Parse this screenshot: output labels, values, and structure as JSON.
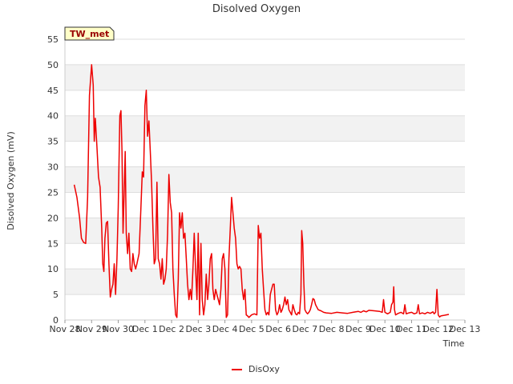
{
  "chart_data": {
    "type": "line",
    "title": "Disolved Oxygen",
    "xlabel": "Time",
    "ylabel": "Disolved Oxygen (mV)",
    "station_label": "TW_met",
    "ylim": [
      0,
      55
    ],
    "xlim": [
      0,
      15
    ],
    "yticks": [
      0,
      5,
      10,
      15,
      20,
      25,
      30,
      35,
      40,
      45,
      50,
      55
    ],
    "xticks": [
      {
        "pos": 0,
        "label": "Nov 28"
      },
      {
        "pos": 1,
        "label": "Nov 29"
      },
      {
        "pos": 2,
        "label": "Nov 30"
      },
      {
        "pos": 3,
        "label": "Dec 1"
      },
      {
        "pos": 4,
        "label": "Dec 2"
      },
      {
        "pos": 5,
        "label": "Dec 3"
      },
      {
        "pos": 6,
        "label": "Dec 4"
      },
      {
        "pos": 7,
        "label": "Dec 5"
      },
      {
        "pos": 8,
        "label": "Dec 6"
      },
      {
        "pos": 9,
        "label": "Dec 7"
      },
      {
        "pos": 10,
        "label": "Dec 8"
      },
      {
        "pos": 11,
        "label": "Dec 9"
      },
      {
        "pos": 12,
        "label": "Dec 10"
      },
      {
        "pos": 13,
        "label": "Dec 11"
      },
      {
        "pos": 14,
        "label": "Dec 12"
      },
      {
        "pos": 15,
        "label": "Dec 13"
      }
    ],
    "grid": true,
    "legend_position": "bottom-center",
    "series": [
      {
        "name": "DisOxy",
        "color": "#ee0000",
        "points": [
          [
            0.35,
            26.5
          ],
          [
            0.45,
            24
          ],
          [
            0.55,
            20
          ],
          [
            0.62,
            16
          ],
          [
            0.7,
            15.2
          ],
          [
            0.78,
            15
          ],
          [
            0.85,
            24
          ],
          [
            0.92,
            44
          ],
          [
            1.0,
            50
          ],
          [
            1.06,
            46
          ],
          [
            1.1,
            35
          ],
          [
            1.14,
            39.5
          ],
          [
            1.2,
            34
          ],
          [
            1.26,
            28
          ],
          [
            1.32,
            26
          ],
          [
            1.38,
            18
          ],
          [
            1.42,
            11
          ],
          [
            1.46,
            9.5
          ],
          [
            1.5,
            16
          ],
          [
            1.55,
            19
          ],
          [
            1.6,
            19.3
          ],
          [
            1.65,
            11
          ],
          [
            1.7,
            4.5
          ],
          [
            1.75,
            6
          ],
          [
            1.8,
            7
          ],
          [
            1.85,
            11
          ],
          [
            1.9,
            5
          ],
          [
            1.95,
            12
          ],
          [
            2.0,
            22
          ],
          [
            2.06,
            40
          ],
          [
            2.1,
            41
          ],
          [
            2.14,
            33
          ],
          [
            2.18,
            17
          ],
          [
            2.22,
            25
          ],
          [
            2.26,
            33
          ],
          [
            2.3,
            17
          ],
          [
            2.35,
            13
          ],
          [
            2.4,
            17
          ],
          [
            2.45,
            10
          ],
          [
            2.5,
            9.5
          ],
          [
            2.55,
            13
          ],
          [
            2.6,
            11
          ],
          [
            2.65,
            10
          ],
          [
            2.7,
            11
          ],
          [
            2.78,
            13
          ],
          [
            2.85,
            22
          ],
          [
            2.9,
            29
          ],
          [
            2.95,
            28
          ],
          [
            3.0,
            42
          ],
          [
            3.05,
            45
          ],
          [
            3.1,
            36
          ],
          [
            3.15,
            39
          ],
          [
            3.2,
            33
          ],
          [
            3.25,
            27
          ],
          [
            3.3,
            18
          ],
          [
            3.35,
            11
          ],
          [
            3.4,
            12
          ],
          [
            3.45,
            27
          ],
          [
            3.5,
            12
          ],
          [
            3.55,
            11
          ],
          [
            3.6,
            8
          ],
          [
            3.65,
            12
          ],
          [
            3.7,
            7
          ],
          [
            3.75,
            8
          ],
          [
            3.8,
            10
          ],
          [
            3.85,
            17
          ],
          [
            3.9,
            28.5
          ],
          [
            3.95,
            23
          ],
          [
            4.0,
            21
          ],
          [
            4.05,
            10
          ],
          [
            4.1,
            5
          ],
          [
            4.15,
            1
          ],
          [
            4.2,
            0.5
          ],
          [
            4.25,
            8
          ],
          [
            4.3,
            21
          ],
          [
            4.35,
            18
          ],
          [
            4.4,
            21
          ],
          [
            4.45,
            16
          ],
          [
            4.5,
            17
          ],
          [
            4.55,
            12
          ],
          [
            4.6,
            7
          ],
          [
            4.65,
            4
          ],
          [
            4.7,
            6
          ],
          [
            4.75,
            4
          ],
          [
            4.8,
            10
          ],
          [
            4.85,
            17
          ],
          [
            4.9,
            10
          ],
          [
            4.95,
            4
          ],
          [
            5.0,
            17
          ],
          [
            5.05,
            1
          ],
          [
            5.1,
            15
          ],
          [
            5.15,
            4
          ],
          [
            5.2,
            1
          ],
          [
            5.25,
            3
          ],
          [
            5.3,
            9
          ],
          [
            5.35,
            4
          ],
          [
            5.4,
            7
          ],
          [
            5.45,
            12
          ],
          [
            5.5,
            13
          ],
          [
            5.55,
            6
          ],
          [
            5.6,
            4
          ],
          [
            5.65,
            6
          ],
          [
            5.7,
            5
          ],
          [
            5.75,
            4
          ],
          [
            5.8,
            3
          ],
          [
            5.85,
            6
          ],
          [
            5.9,
            12
          ],
          [
            5.95,
            13
          ],
          [
            6.0,
            10
          ],
          [
            6.05,
            0.5
          ],
          [
            6.1,
            1
          ],
          [
            6.15,
            12
          ],
          [
            6.2,
            18
          ],
          [
            6.25,
            24
          ],
          [
            6.3,
            21
          ],
          [
            6.35,
            18
          ],
          [
            6.4,
            16
          ],
          [
            6.45,
            11
          ],
          [
            6.5,
            10
          ],
          [
            6.55,
            10.5
          ],
          [
            6.6,
            10
          ],
          [
            6.65,
            6
          ],
          [
            6.7,
            4
          ],
          [
            6.75,
            6
          ],
          [
            6.8,
            1
          ],
          [
            6.85,
            0.8
          ],
          [
            6.9,
            0.5
          ],
          [
            7.0,
            1
          ],
          [
            7.1,
            1.2
          ],
          [
            7.2,
            1
          ],
          [
            7.25,
            18.5
          ],
          [
            7.3,
            16
          ],
          [
            7.35,
            17
          ],
          [
            7.4,
            10
          ],
          [
            7.45,
            6
          ],
          [
            7.5,
            2
          ],
          [
            7.55,
            1
          ],
          [
            7.6,
            1.5
          ],
          [
            7.65,
            1
          ],
          [
            7.7,
            5
          ],
          [
            7.75,
            6
          ],
          [
            7.8,
            7
          ],
          [
            7.85,
            7
          ],
          [
            7.9,
            2
          ],
          [
            7.95,
            1
          ],
          [
            8.0,
            1.5
          ],
          [
            8.05,
            3
          ],
          [
            8.1,
            1.5
          ],
          [
            8.15,
            2
          ],
          [
            8.2,
            3
          ],
          [
            8.25,
            4.5
          ],
          [
            8.3,
            3
          ],
          [
            8.35,
            4
          ],
          [
            8.4,
            2
          ],
          [
            8.45,
            1.5
          ],
          [
            8.5,
            1
          ],
          [
            8.55,
            3
          ],
          [
            8.6,
            2
          ],
          [
            8.65,
            1.2
          ],
          [
            8.7,
            1
          ],
          [
            8.75,
            1.5
          ],
          [
            8.8,
            1.2
          ],
          [
            8.85,
            5
          ],
          [
            8.88,
            17.5
          ],
          [
            8.92,
            15
          ],
          [
            8.96,
            7
          ],
          [
            9.0,
            2
          ],
          [
            9.05,
            1.5
          ],
          [
            9.1,
            1.2
          ],
          [
            9.15,
            1.5
          ],
          [
            9.2,
            2
          ],
          [
            9.25,
            3
          ],
          [
            9.3,
            4.2
          ],
          [
            9.35,
            4
          ],
          [
            9.4,
            3
          ],
          [
            9.5,
            2
          ],
          [
            9.6,
            1.8
          ],
          [
            9.7,
            1.5
          ],
          [
            9.8,
            1.4
          ],
          [
            10.0,
            1.3
          ],
          [
            10.2,
            1.5
          ],
          [
            10.4,
            1.4
          ],
          [
            10.6,
            1.3
          ],
          [
            10.8,
            1.5
          ],
          [
            11.0,
            1.7
          ],
          [
            11.1,
            1.5
          ],
          [
            11.2,
            1.8
          ],
          [
            11.3,
            1.6
          ],
          [
            11.4,
            1.9
          ],
          [
            11.6,
            1.8
          ],
          [
            11.8,
            1.7
          ],
          [
            11.9,
            1.5
          ],
          [
            11.95,
            4
          ],
          [
            12.0,
            1.5
          ],
          [
            12.1,
            1.2
          ],
          [
            12.2,
            1.5
          ],
          [
            12.25,
            3
          ],
          [
            12.3,
            3.5
          ],
          [
            12.33,
            6.5
          ],
          [
            12.36,
            2
          ],
          [
            12.4,
            1
          ],
          [
            12.5,
            1.3
          ],
          [
            12.6,
            1.5
          ],
          [
            12.7,
            1.2
          ],
          [
            12.75,
            3
          ],
          [
            12.8,
            1.2
          ],
          [
            12.9,
            1.4
          ],
          [
            13.0,
            1.5
          ],
          [
            13.1,
            1.2
          ],
          [
            13.2,
            1.4
          ],
          [
            13.25,
            3
          ],
          [
            13.3,
            1.2
          ],
          [
            13.4,
            1.4
          ],
          [
            13.5,
            1.2
          ],
          [
            13.6,
            1.5
          ],
          [
            13.7,
            1.3
          ],
          [
            13.8,
            1.6
          ],
          [
            13.85,
            1.2
          ],
          [
            13.9,
            1.5
          ],
          [
            13.95,
            6
          ],
          [
            14.0,
            1
          ],
          [
            14.05,
            0.6
          ],
          [
            14.1,
            0.8
          ],
          [
            14.2,
            0.9
          ],
          [
            14.3,
            1
          ],
          [
            14.4,
            1.1
          ]
        ]
      }
    ]
  }
}
